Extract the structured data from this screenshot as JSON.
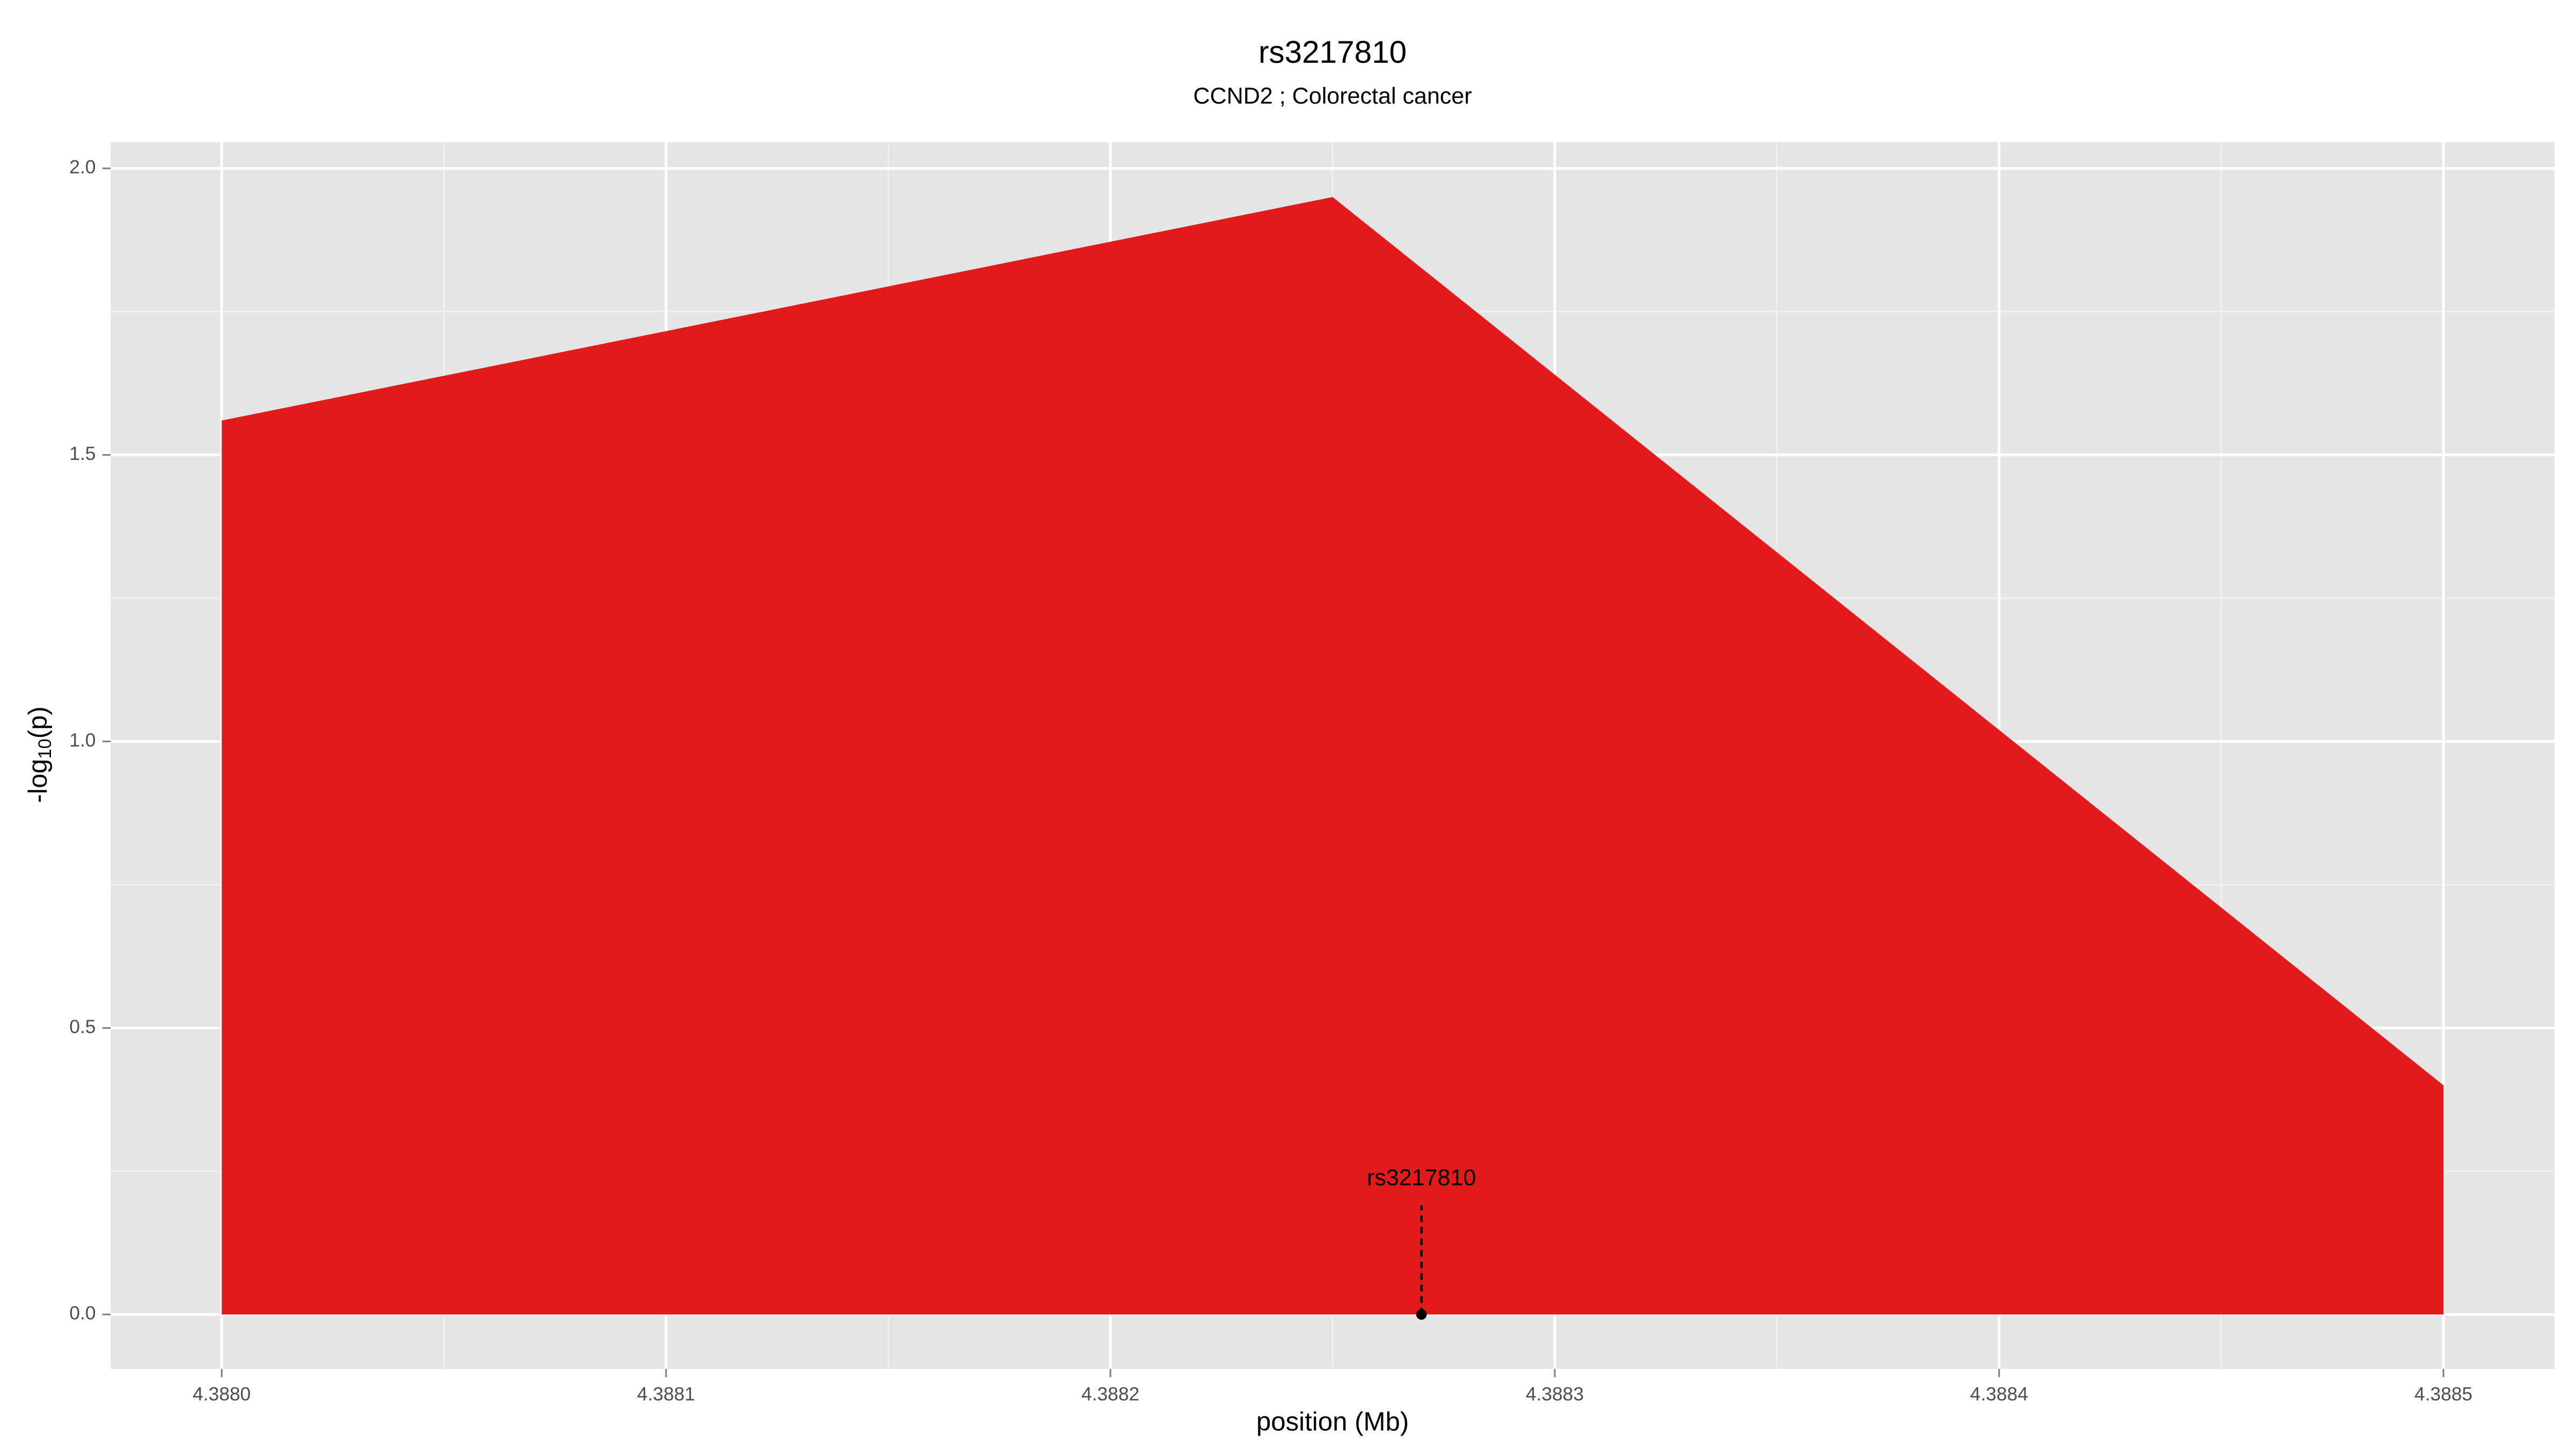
{
  "chart_data": {
    "type": "area",
    "title": "rs3217810",
    "subtitle": "CCND2 ; Colorectal cancer",
    "x_label": "position (Mb)",
    "y_label": [
      "-log",
      "10",
      "(p)"
    ],
    "x": [
      4.388,
      4.38825,
      4.3885
    ],
    "values": [
      1.56,
      1.95,
      0.4
    ],
    "color": "#e31a1c",
    "xlim": [
      4.387975,
      4.388525
    ],
    "ylim": [
      -0.095,
      2.046
    ],
    "xticks": [
      {
        "value": 4.388,
        "label": "4.3880"
      },
      {
        "value": 4.3881,
        "label": "4.3881"
      },
      {
        "value": 4.3882,
        "label": "4.3882"
      },
      {
        "value": 4.3883,
        "label": "4.3883"
      },
      {
        "value": 4.3884,
        "label": "4.3884"
      },
      {
        "value": 4.3885,
        "label": "4.3885"
      }
    ],
    "yticks": [
      {
        "value": 0,
        "label": "0.0"
      },
      0.5,
      {
        "value": 1,
        "label": "1.0"
      },
      1.5,
      {
        "value": 2,
        "label": "2.0"
      }
    ],
    "grid": true,
    "annotation": {
      "label": "rs3217810",
      "x": 4.38827,
      "y": 0,
      "line_top": 0.19
    }
  }
}
